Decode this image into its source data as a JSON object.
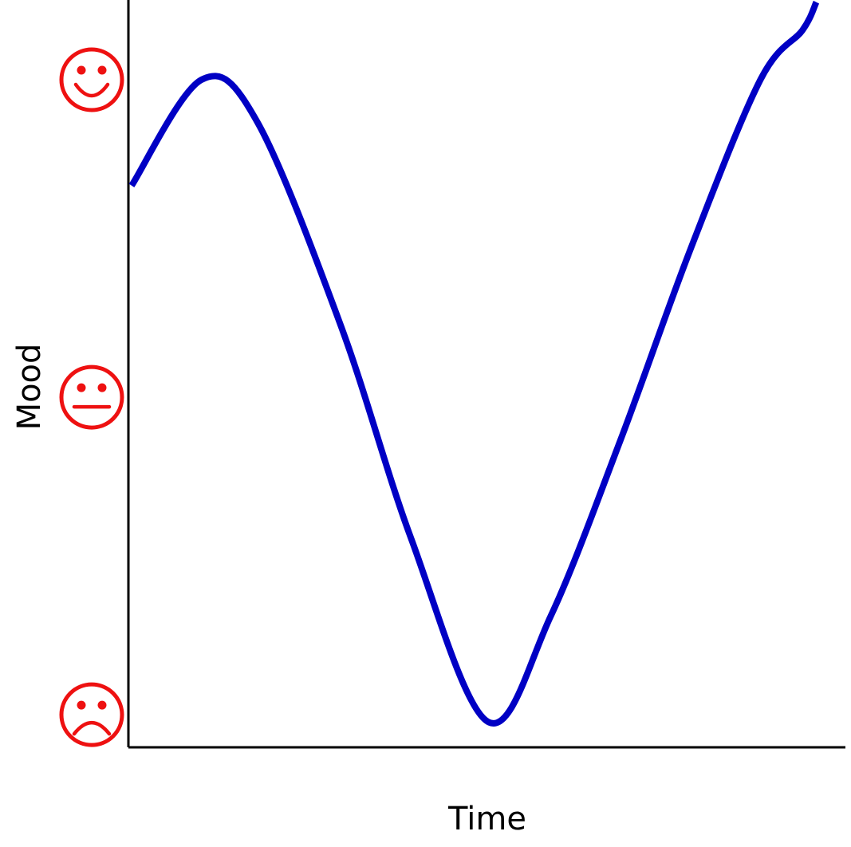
{
  "chart_data": {
    "type": "line",
    "title": "",
    "xlabel": "Time",
    "ylabel": "Mood",
    "xlim": [
      0,
      1
    ],
    "ylim": [
      0,
      1
    ],
    "y_ticks": [
      {
        "value": 0.05,
        "icon": "sad-face-icon"
      },
      {
        "value": 0.5,
        "icon": "neutral-face-icon"
      },
      {
        "value": 0.95,
        "icon": "happy-face-icon"
      }
    ],
    "grid": false,
    "series": [
      {
        "color": "#0000c4",
        "x": [
          0.0,
          0.1,
          0.18,
          0.3,
          0.4,
          0.51,
          0.6,
          0.7,
          0.8,
          0.9,
          0.96,
          0.98
        ],
        "y": [
          0.8,
          0.95,
          0.89,
          0.6,
          0.3,
          0.04,
          0.19,
          0.44,
          0.71,
          0.95,
          1.02,
          1.06
        ]
      }
    ]
  },
  "colors": {
    "line": "#0000c4",
    "faces": "#ee1111",
    "axes": "#000000"
  }
}
